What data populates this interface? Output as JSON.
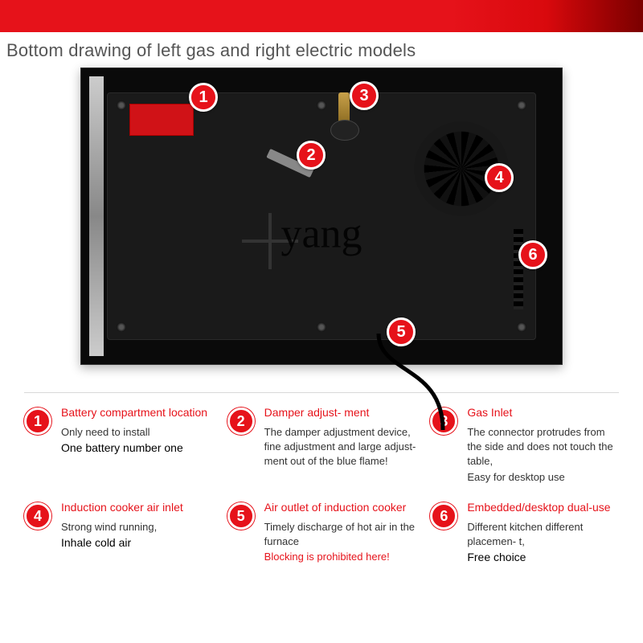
{
  "colors": {
    "brand_red": "#e6121a",
    "text_dark": "#333333",
    "bg": "#ffffff"
  },
  "heading": "Bottom drawing of left gas and right electric models",
  "watermark": "yang",
  "markers": {
    "m1": "1",
    "m2": "2",
    "m3": "3",
    "m4": "4",
    "m5": "5",
    "m6": "6"
  },
  "features": [
    {
      "num": "1",
      "title": "Battery compartment location",
      "lines": [
        "Only need to install"
      ],
      "strong": "One battery number one"
    },
    {
      "num": "2",
      "title": "Damper adjust-\nment",
      "lines": [
        "The damper adjustment device, fine adjustment and large adjust- ment out of the blue flame!"
      ]
    },
    {
      "num": "3",
      "title": "Gas Inlet",
      "lines": [
        "The connector protrudes from the side and does not touch the table,",
        "Easy for desktop use"
      ]
    },
    {
      "num": "4",
      "title": "Induction cooker air inlet",
      "lines": [
        "Strong wind running,"
      ],
      "strong": "Inhale cold air"
    },
    {
      "num": "5",
      "title": "Air outlet of induction cooker",
      "lines": [
        "Timely discharge of hot air in the furnace"
      ],
      "warn": "Blocking is prohibited here!"
    },
    {
      "num": "6",
      "title": "Embedded/desktop dual-use",
      "lines": [
        "Different kitchen different placemen- t,"
      ],
      "strong": "Free choice"
    }
  ]
}
